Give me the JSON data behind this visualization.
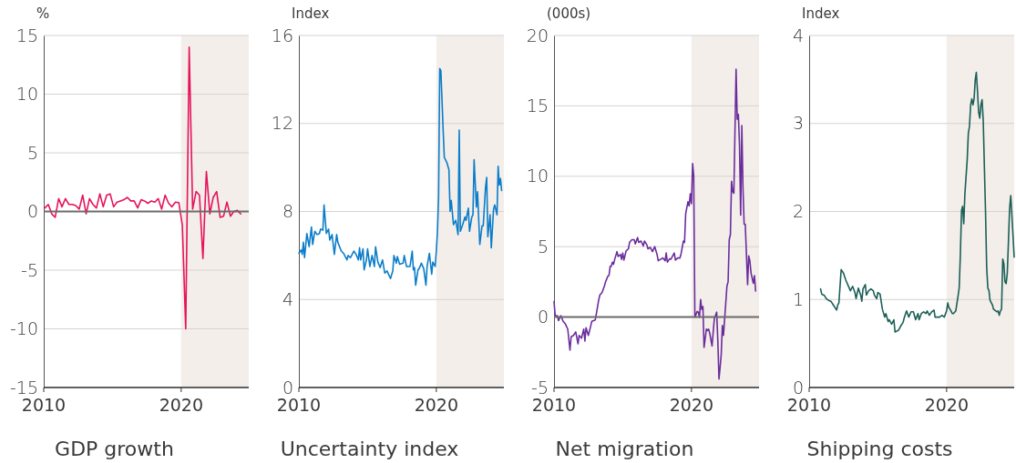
{
  "chart_data": [
    {
      "type": "line",
      "title": "GDP growth",
      "ylabel": "%",
      "xlim": [
        "2010",
        "2024-12"
      ],
      "xticks": [
        "2010",
        "2020"
      ],
      "ylim": [
        -15,
        15
      ],
      "yticks": [
        -15,
        -10,
        -5,
        0,
        5,
        10,
        15
      ],
      "grid": "y",
      "ref_lines": [
        {
          "axis": "y",
          "value": 0,
          "color": "#6b6b6b"
        }
      ],
      "bands": [
        {
          "axis": "x",
          "from": "2020",
          "to": "2024-12",
          "color": "#f3eeea"
        }
      ],
      "x": [
        "2010-02",
        "2010-05",
        "2010-08",
        "2010-11",
        "2011-02",
        "2011-05",
        "2011-08",
        "2011-11",
        "2012-02",
        "2012-05",
        "2012-08",
        "2012-11",
        "2013-02",
        "2013-05",
        "2013-08",
        "2013-11",
        "2014-02",
        "2014-05",
        "2014-08",
        "2014-11",
        "2015-02",
        "2015-05",
        "2015-08",
        "2015-11",
        "2016-02",
        "2016-05",
        "2016-08",
        "2016-11",
        "2017-02",
        "2017-05",
        "2017-08",
        "2017-11",
        "2018-02",
        "2018-05",
        "2018-08",
        "2018-11",
        "2019-02",
        "2019-05",
        "2019-08",
        "2019-11",
        "2020-02",
        "2020-05",
        "2020-08",
        "2020-11",
        "2021-02",
        "2021-05",
        "2021-08",
        "2021-11",
        "2022-02",
        "2022-05",
        "2022-08",
        "2022-11",
        "2023-02",
        "2023-05",
        "2023-08",
        "2023-11",
        "2024-02",
        "2024-05"
      ],
      "series": [
        {
          "color": "#e6125c",
          "values": [
            0.3,
            0.6,
            -0.2,
            -0.5,
            1.1,
            0.4,
            1.1,
            0.6,
            0.6,
            0.5,
            0.2,
            1.4,
            -0.2,
            1.1,
            0.6,
            0.3,
            1.5,
            0.4,
            1.4,
            1.5,
            0.4,
            0.8,
            0.9,
            1.0,
            1.2,
            0.9,
            0.9,
            0.3,
            1.0,
            0.9,
            0.7,
            0.9,
            0.8,
            1.1,
            0.2,
            1.4,
            0.7,
            0.4,
            0.8,
            0.75,
            -1.2,
            -10,
            14,
            0.2,
            1.7,
            1.4,
            -4,
            3.4,
            -0.2,
            1.2,
            1.7,
            -0.5,
            -0.4,
            0.8,
            -0.4,
            0.0,
            0.1,
            -0.2
          ]
        }
      ]
    },
    {
      "type": "line",
      "title": "Uncertainty index",
      "ylabel": "Index",
      "xlim": [
        "2010",
        "2024-12"
      ],
      "xticks": [
        "2010",
        "2020"
      ],
      "ylim": [
        0,
        16
      ],
      "yticks": [
        0,
        4,
        8,
        12,
        16
      ],
      "grid": "y",
      "bands": [
        {
          "axis": "x",
          "from": "2020",
          "to": "2024-12",
          "color": "#f3eeea"
        }
      ],
      "x": [
        "2010-01",
        "2010-03",
        "2010-04",
        "2010-05",
        "2010-06",
        "2010-08",
        "2010-10",
        "2010-12",
        "2011-01",
        "2011-03",
        "2011-05",
        "2011-07",
        "2011-08",
        "2011-10",
        "2011-11",
        "2012-01",
        "2012-03",
        "2012-04",
        "2012-06",
        "2012-08",
        "2012-10",
        "2012-11",
        "2013-02",
        "2013-04",
        "2013-07",
        "2013-08",
        "2013-10",
        "2014-01",
        "2014-03",
        "2014-05",
        "2014-06",
        "2014-07",
        "2014-09",
        "2014-10",
        "2014-12",
        "2015-01",
        "2015-03",
        "2015-05",
        "2015-07",
        "2015-08",
        "2015-10",
        "2015-12",
        "2016-02",
        "2016-04",
        "2016-06",
        "2016-09",
        "2016-11",
        "2016-12",
        "2017-02",
        "2017-03",
        "2017-05",
        "2017-08",
        "2017-09",
        "2017-11",
        "2018-02",
        "2018-04",
        "2018-05",
        "2018-06",
        "2018-07",
        "2018-09",
        "2018-10",
        "2018-12",
        "2019-02",
        "2019-04",
        "2019-05",
        "2019-07",
        "2019-09",
        "2019-10",
        "2019-12",
        "2020-01",
        "2020-02",
        "2020-03",
        "2020-04",
        "2020-05",
        "2020-07",
        "2020-08",
        "2020-10",
        "2020-12",
        "2021-01",
        "2021-02",
        "2021-04",
        "2021-06",
        "2021-08",
        "2021-09",
        "2021-10",
        "2021-12",
        "2022-02",
        "2022-03",
        "2022-05",
        "2022-06",
        "2022-08",
        "2022-09",
        "2022-10",
        "2022-12",
        "2023-01",
        "2023-03",
        "2023-05",
        "2023-06",
        "2023-08",
        "2023-09",
        "2023-10",
        "2023-12",
        "2024-01",
        "2024-03",
        "2024-04",
        "2024-06",
        "2024-07",
        "2024-08",
        "2024-09",
        "2024-10"
      ],
      "series": [
        {
          "color": "#0b7dc9",
          "values": [
            6.1,
            6.25,
            6.05,
            6.6,
            5.9,
            7.0,
            6.4,
            7.3,
            6.5,
            7.1,
            6.95,
            7.0,
            7.2,
            7.15,
            8.3,
            7.0,
            7.2,
            6.7,
            6.95,
            6.05,
            6.95,
            6.6,
            6.2,
            6.1,
            5.8,
            6.0,
            5.9,
            6.2,
            6.05,
            5.8,
            6.35,
            5.8,
            6.3,
            5.35,
            5.8,
            6.3,
            5.5,
            6.0,
            5.5,
            6.4,
            5.7,
            5.45,
            5.8,
            5.2,
            5.3,
            4.95,
            5.3,
            6.0,
            5.65,
            5.95,
            5.6,
            5.65,
            6.0,
            5.5,
            5.5,
            6.2,
            5.35,
            5.45,
            4.65,
            5.35,
            5.4,
            5.65,
            5.4,
            4.65,
            5.5,
            6.1,
            5.15,
            5.7,
            5.5,
            6.2,
            7.1,
            8.65,
            14.5,
            14.4,
            11.7,
            10.45,
            10.25,
            9.9,
            8.0,
            8.5,
            7.4,
            7.6,
            6.95,
            11.7,
            7.1,
            7.4,
            7.75,
            7.6,
            8.15,
            7.1,
            7.75,
            7.85,
            10.35,
            8.2,
            8.9,
            6.5,
            7.35,
            7.35,
            9.1,
            9.55,
            6.85,
            7.85,
            6.35,
            8.1,
            8.3,
            7.85,
            10.05,
            9.2,
            9.5,
            8.95
          ]
        }
      ]
    },
    {
      "type": "line",
      "title": "Net migration",
      "ylabel": "(000s)",
      "xlim": [
        "2010",
        "2024-12"
      ],
      "xticks": [
        "2010",
        "2020"
      ],
      "ylim": [
        -5,
        20
      ],
      "yticks": [
        -5,
        0,
        5,
        10,
        15,
        20
      ],
      "grid": "y",
      "ref_lines": [
        {
          "axis": "y",
          "value": 0,
          "color": "#6b6b6b"
        }
      ],
      "bands": [
        {
          "axis": "x",
          "from": "2020",
          "to": "2024-12",
          "color": "#f3eeea"
        }
      ],
      "x": [
        "2010-01",
        "2010-02",
        "2010-04",
        "2010-05",
        "2010-07",
        "2010-09",
        "2010-11",
        "2011-01",
        "2011-03",
        "2011-04",
        "2011-06",
        "2011-08",
        "2011-10",
        "2011-11",
        "2012-01",
        "2012-03",
        "2012-04",
        "2012-05",
        "2012-07",
        "2012-09",
        "2012-10",
        "2013-01",
        "2013-02",
        "2013-04",
        "2013-05",
        "2013-07",
        "2013-09",
        "2013-10",
        "2013-12",
        "2014-01",
        "2014-02",
        "2014-03",
        "2014-04",
        "2014-05",
        "2014-06",
        "2014-08",
        "2014-09",
        "2014-11",
        "2014-12",
        "2015-01",
        "2015-02",
        "2015-04",
        "2015-06",
        "2015-07",
        "2015-09",
        "2015-11",
        "2015-12",
        "2016-02",
        "2016-03",
        "2016-05",
        "2016-07",
        "2016-08",
        "2016-10",
        "2016-11",
        "2017-01",
        "2017-03",
        "2017-05",
        "2017-07",
        "2017-08",
        "2017-10",
        "2017-12",
        "2018-02",
        "2018-03",
        "2018-04",
        "2018-06",
        "2018-07",
        "2018-10",
        "2018-11",
        "2019-01",
        "2019-03",
        "2019-04",
        "2019-06",
        "2019-07",
        "2019-08",
        "2019-10",
        "2019-11",
        "2019-12",
        "2020-01",
        "2020-02",
        "2020-03",
        "2020-04",
        "2020-06",
        "2020-07",
        "2020-08",
        "2020-09",
        "2020-10",
        "2020-11",
        "2020-12",
        "2021-02",
        "2021-03",
        "2021-04",
        "2021-05",
        "2021-07",
        "2021-08",
        "2021-09",
        "2021-11",
        "2021-12",
        "2022-01",
        "2022-02",
        "2022-03",
        "2022-04",
        "2022-05",
        "2022-07",
        "2022-08",
        "2022-09",
        "2022-10",
        "2022-11",
        "2022-12",
        "2023-01",
        "2023-02",
        "2023-04",
        "2023-05",
        "2023-06",
        "2023-07",
        "2023-08",
        "2023-09",
        "2023-10",
        "2023-11",
        "2023-12",
        "2024-02",
        "2024-03",
        "2024-04",
        "2024-05",
        "2024-07",
        "2024-08",
        "2024-09"
      ],
      "series": [
        {
          "color": "#6b2d9c",
          "values": [
            1.1,
            0.1,
            0.1,
            -0.25,
            0.1,
            -0.3,
            -0.5,
            -0.85,
            -2.35,
            -1.4,
            -1.3,
            -1.05,
            -1.9,
            -1.3,
            -1.5,
            -0.85,
            -1.7,
            -0.75,
            -1.3,
            -0.65,
            -0.3,
            -0.2,
            0.25,
            1.2,
            1.55,
            1.75,
            2.2,
            2.5,
            2.9,
            2.95,
            3.6,
            3.6,
            3.9,
            3.75,
            4.1,
            4.65,
            4.3,
            4.45,
            4.1,
            4.55,
            4.05,
            4.7,
            4.85,
            5.3,
            5.5,
            5.5,
            5.2,
            5.65,
            5.3,
            5.4,
            5.05,
            5.4,
            5.15,
            4.85,
            4.95,
            4.65,
            5.0,
            4.45,
            4.0,
            4.1,
            4.2,
            4.0,
            4.55,
            3.9,
            4.15,
            4.1,
            4.55,
            4.05,
            4.2,
            4.2,
            4.5,
            5.4,
            5.3,
            7.35,
            8.2,
            7.9,
            8.75,
            8.05,
            10.9,
            10.05,
            0.0,
            0.4,
            0.35,
            0.0,
            1.25,
            0.55,
            0.75,
            -2.15,
            -0.85,
            -0.95,
            -0.85,
            -1.15,
            -2.05,
            -1.05,
            -0.1,
            0.35,
            -1.6,
            -4.4,
            -3.55,
            -2.7,
            -0.6,
            -1.3,
            1.0,
            2.2,
            2.5,
            5.5,
            5.85,
            9.65,
            8.9,
            8.8,
            17.6,
            14.05,
            14.4,
            12.2,
            7.25,
            13.6,
            9.2,
            6.6,
            6.6,
            2.3,
            4.35,
            4.0,
            3.15,
            2.4,
            2.95,
            1.85
          ]
        }
      ]
    },
    {
      "type": "line",
      "title": "Shipping costs",
      "ylabel": "Index",
      "xlim": [
        "2010",
        "2024-12"
      ],
      "xticks": [
        "2010",
        "2020"
      ],
      "ylim": [
        0,
        4
      ],
      "yticks": [
        0,
        1,
        2,
        3,
        4
      ],
      "grid": "y",
      "bands": [
        {
          "axis": "x",
          "from": "2020",
          "to": "2024-12",
          "color": "#f3eeea"
        }
      ],
      "x": [
        "2010-11",
        "2010-12",
        "2011-02",
        "2011-04",
        "2011-06",
        "2011-08",
        "2011-10",
        "2012-01",
        "2012-02",
        "2012-03",
        "2012-05",
        "2012-07",
        "2012-09",
        "2012-12",
        "2013-01",
        "2013-03",
        "2013-05",
        "2013-06",
        "2013-08",
        "2013-10",
        "2013-11",
        "2013-12",
        "2014-02",
        "2014-03",
        "2014-05",
        "2014-07",
        "2014-09",
        "2014-10",
        "2014-12",
        "2015-01",
        "2015-03",
        "2015-05",
        "2015-07",
        "2015-08",
        "2015-10",
        "2015-11",
        "2016-01",
        "2016-03",
        "2016-04",
        "2016-07",
        "2016-09",
        "2016-11",
        "2016-12",
        "2017-02",
        "2017-04",
        "2017-06",
        "2017-08",
        "2017-10",
        "2017-12",
        "2018-01",
        "2018-03",
        "2018-05",
        "2018-07",
        "2018-08",
        "2018-10",
        "2018-12",
        "2019-02",
        "2019-03",
        "2019-05",
        "2019-07",
        "2019-09",
        "2019-11",
        "2020-01",
        "2020-02",
        "2020-03",
        "2020-04",
        "2020-06",
        "2020-07",
        "2020-09",
        "2020-11",
        "2020-12",
        "2021-01",
        "2021-02",
        "2021-03",
        "2021-04",
        "2021-05",
        "2021-07",
        "2021-08",
        "2021-09",
        "2021-10",
        "2021-11",
        "2021-12",
        "2022-01",
        "2022-02",
        "2022-03",
        "2022-04",
        "2022-05",
        "2022-06",
        "2022-07",
        "2022-08",
        "2022-09",
        "2022-10",
        "2022-11",
        "2022-12",
        "2023-01",
        "2023-02",
        "2023-03",
        "2023-05",
        "2023-06",
        "2023-07",
        "2023-09",
        "2023-10",
        "2023-11",
        "2023-12",
        "2024-01",
        "2024-02",
        "2024-03",
        "2024-04",
        "2024-05",
        "2024-06",
        "2024-07",
        "2024-08",
        "2024-09",
        "2024-10",
        "2024-11",
        "2024-12"
      ],
      "series": [
        {
          "color": "#1b5f57",
          "values": [
            1.12,
            1.06,
            1.05,
            1.01,
            0.99,
            0.98,
            0.94,
            0.88,
            0.94,
            0.96,
            1.34,
            1.3,
            1.22,
            1.13,
            1.1,
            1.15,
            1.08,
            1.01,
            1.13,
            1.05,
            0.98,
            1.12,
            1.17,
            1.05,
            1.1,
            1.12,
            1.1,
            1.05,
            1.01,
            1.08,
            1.06,
            0.89,
            0.8,
            0.84,
            0.75,
            0.77,
            0.72,
            0.77,
            0.63,
            0.65,
            0.7,
            0.74,
            0.79,
            0.87,
            0.8,
            0.86,
            0.86,
            0.77,
            0.84,
            0.77,
            0.84,
            0.86,
            0.84,
            0.87,
            0.82,
            0.86,
            0.88,
            0.8,
            0.8,
            0.8,
            0.82,
            0.8,
            0.87,
            0.96,
            0.91,
            0.89,
            0.84,
            0.84,
            0.87,
            1.04,
            1.13,
            1.51,
            2.01,
            2.06,
            1.86,
            2.2,
            2.58,
            2.89,
            2.97,
            3.21,
            3.28,
            3.21,
            3.28,
            3.5,
            3.58,
            3.37,
            3.13,
            3.06,
            3.21,
            3.27,
            3.03,
            2.51,
            1.99,
            1.37,
            1.13,
            1.1,
            0.99,
            0.94,
            0.89,
            0.88,
            0.86,
            0.87,
            0.82,
            0.87,
            0.89,
            1.46,
            1.41,
            1.2,
            1.18,
            1.3,
            1.65,
            2.03,
            2.18,
            1.96,
            1.72,
            1.48
          ]
        }
      ]
    }
  ]
}
